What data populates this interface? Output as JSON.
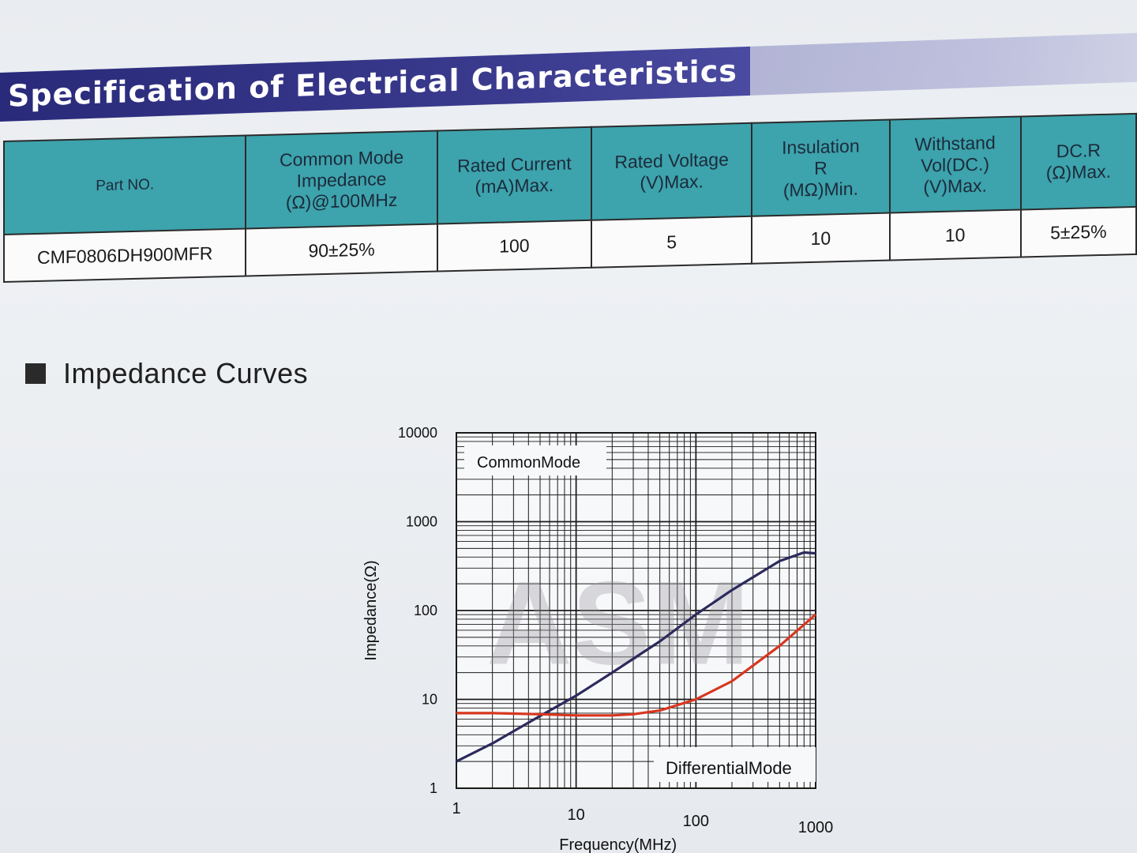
{
  "title": "Specification of Electrical Characteristics",
  "table": {
    "headers": [
      [
        "Part NO."
      ],
      [
        "Common Mode",
        "Impedance",
        "(Ω)@100MHz"
      ],
      [
        "Rated Current",
        "(mA)Max."
      ],
      [
        "Rated Voltage",
        "(V)Max."
      ],
      [
        "Insulation",
        "R",
        "(MΩ)Min."
      ],
      [
        "Withstand",
        "Vol(DC.)",
        "(V)Max."
      ],
      [
        "DC.R",
        "(Ω)Max."
      ]
    ],
    "row": [
      "CMF0806DH900MFR",
      "90±25%",
      "100",
      "5",
      "10",
      "10",
      "5±25%"
    ]
  },
  "section_heading": "Impedance Curves",
  "chart_data": {
    "type": "line",
    "xlabel": "Frequency(MHz)",
    "ylabel": "Impedance(Ω)",
    "x_scale": "log",
    "y_scale": "log",
    "xlim": [
      1,
      1000
    ],
    "ylim": [
      1,
      10000
    ],
    "x_ticks": [
      "1",
      "10",
      "100",
      "1000"
    ],
    "y_ticks": [
      "1",
      "10",
      "100",
      "1000",
      "10000"
    ],
    "grid": true,
    "watermark": "ASM",
    "series": [
      {
        "name": "CommonMode",
        "color": "#2c2a5c",
        "x": [
          1,
          2,
          5,
          10,
          20,
          50,
          100,
          200,
          500,
          800,
          1000
        ],
        "y": [
          2,
          3.2,
          6.5,
          11,
          20,
          45,
          90,
          170,
          360,
          450,
          440
        ]
      },
      {
        "name": "DifferentialMode",
        "color": "#d8361f",
        "x": [
          1,
          2,
          5,
          10,
          20,
          30,
          50,
          100,
          200,
          500,
          1000
        ],
        "y": [
          7,
          7,
          6.8,
          6.6,
          6.6,
          6.8,
          7.5,
          10,
          16,
          40,
          90
        ]
      }
    ]
  }
}
